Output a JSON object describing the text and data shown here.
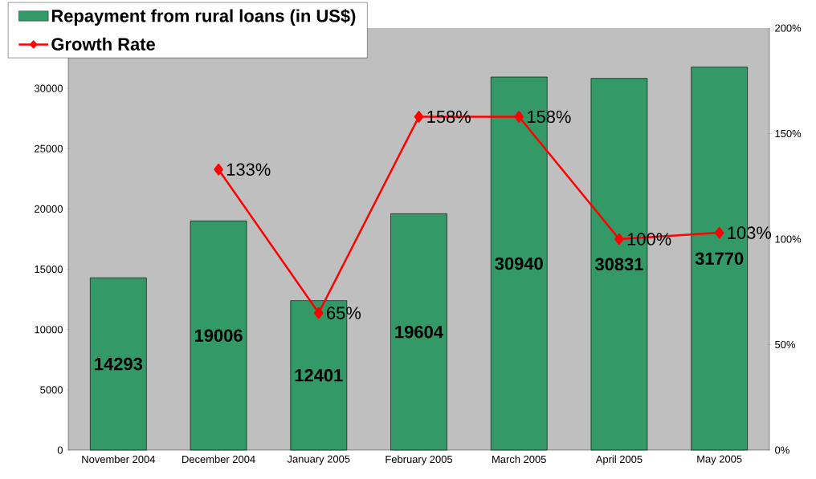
{
  "chart_data": {
    "type": "bar",
    "categories": [
      "November 2004",
      "December 2004",
      "January 2005",
      "February 2005",
      "March 2005",
      "April 2005",
      "May 2005"
    ],
    "series": [
      {
        "name": "Repayment from rural loans (in US$)",
        "color": "#339966",
        "values": [
          14293,
          19006,
          12401,
          19604,
          30940,
          30831,
          31770
        ]
      },
      {
        "name": "Growth Rate",
        "type": "line",
        "axis": "y2",
        "color": "#ff0000",
        "marker": "diamond",
        "line_style": "solid",
        "values": [
          null,
          133,
          65,
          158,
          158,
          100,
          103
        ],
        "value_labels": [
          null,
          "133%",
          "65%",
          "158%",
          "158%",
          "100%",
          "103%"
        ]
      }
    ],
    "ylim": [
      0,
      35000
    ],
    "yticks": [
      0,
      5000,
      10000,
      15000,
      20000,
      25000,
      30000
    ],
    "y2lim": [
      0,
      200
    ],
    "y2ticks": [
      {
        "value": 0,
        "label": "0%"
      },
      {
        "value": 50,
        "label": "50%"
      },
      {
        "value": 100,
        "label": "100%"
      },
      {
        "value": 150,
        "label": "150%"
      },
      {
        "value": 200,
        "label": "200%"
      }
    ],
    "data_labels": true,
    "legend": "top left",
    "grid": false
  }
}
